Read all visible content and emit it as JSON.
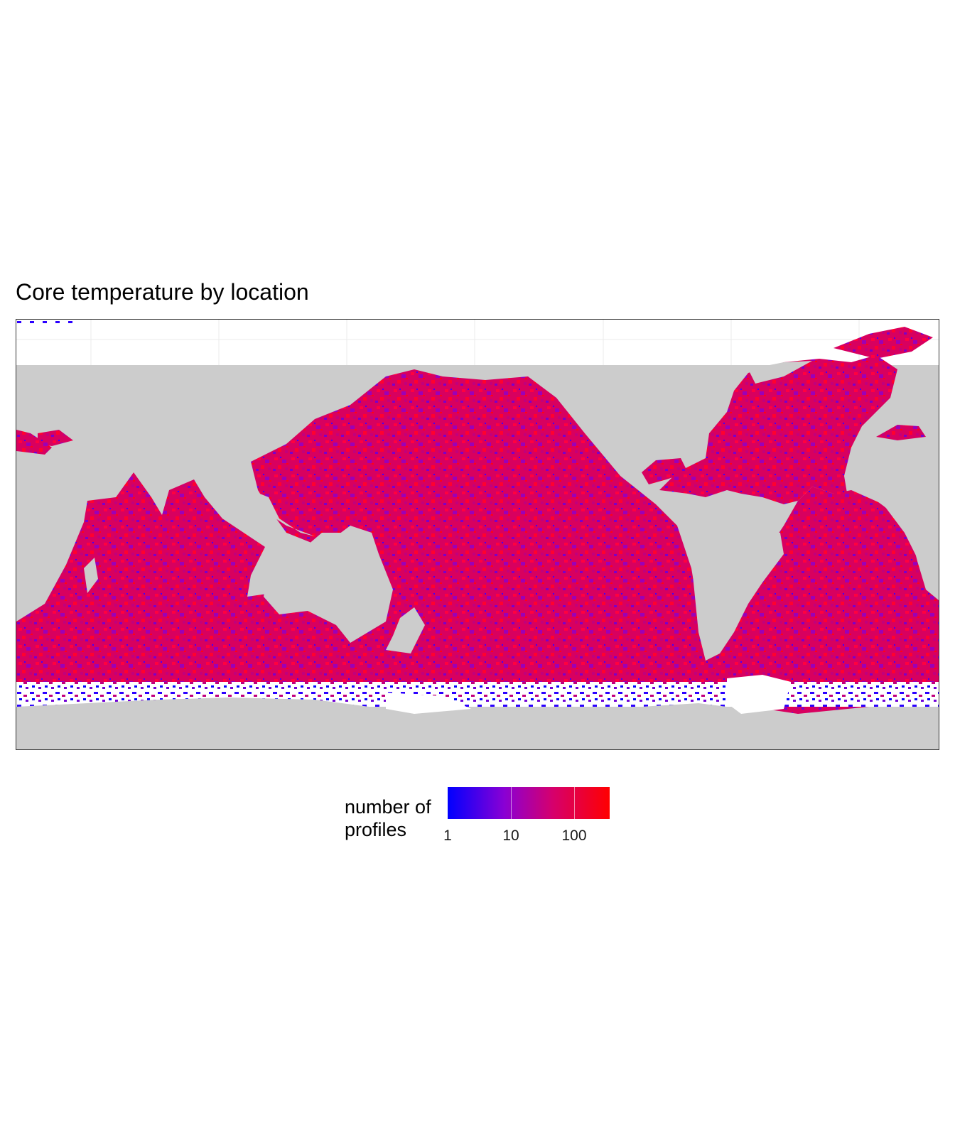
{
  "title": "Core temperature by location",
  "chart_data": {
    "type": "heatmap",
    "title": "Core temperature by location",
    "value_label": "number of profiles",
    "scale": "log10",
    "legend": {
      "title": "number of\nprofiles",
      "ticks": [
        "1",
        "10",
        "100"
      ],
      "tick_values": [
        1,
        10,
        100
      ],
      "range": [
        1,
        300
      ],
      "placement": "bottom"
    },
    "colors": {
      "low": "#0000ff",
      "mid": "#b3008a",
      "high": "#ff0000",
      "land": "#cccccc",
      "no_data": "#ffffff",
      "panel_border": "#333333"
    },
    "grid": true,
    "xlim": [
      20,
      380
    ],
    "ylim": [
      -90,
      90
    ]
  }
}
